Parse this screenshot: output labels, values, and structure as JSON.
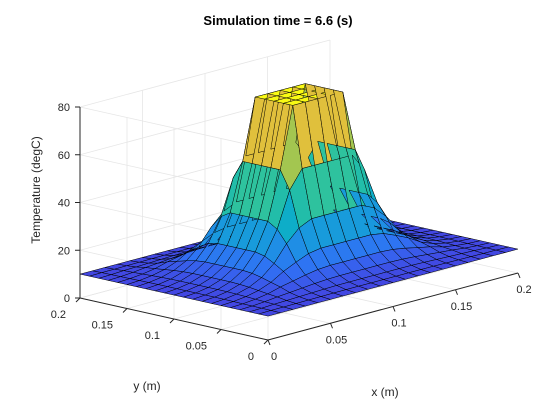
{
  "chart_data": {
    "type": "surface",
    "title": "Simulation time = 6.6 (s)",
    "xlabel": "x (m)",
    "ylabel": "y (m)",
    "zlabel": "Temperature (degC)",
    "xlim": [
      0,
      0.2
    ],
    "ylim": [
      0,
      0.2
    ],
    "zlim": [
      0,
      80
    ],
    "x_ticks": [
      "0",
      "0.05",
      "0.1",
      "0.15",
      "0.2"
    ],
    "y_ticks": [
      "0",
      "0.05",
      "0.1",
      "0.15",
      "0.2"
    ],
    "z_ticks": [
      "0",
      "20",
      "40",
      "60",
      "80"
    ],
    "grid": true,
    "colormap": "parula",
    "grid_points": 21,
    "peak_temperature": 80,
    "heated_region": {
      "x": [
        0.08,
        0.12
      ],
      "y": [
        0.08,
        0.12
      ]
    },
    "edge_temperature": 10,
    "colors": {
      "axis_line": "#262626",
      "grid_line": "#e6e6e6",
      "mesh_line": "#000000"
    }
  }
}
